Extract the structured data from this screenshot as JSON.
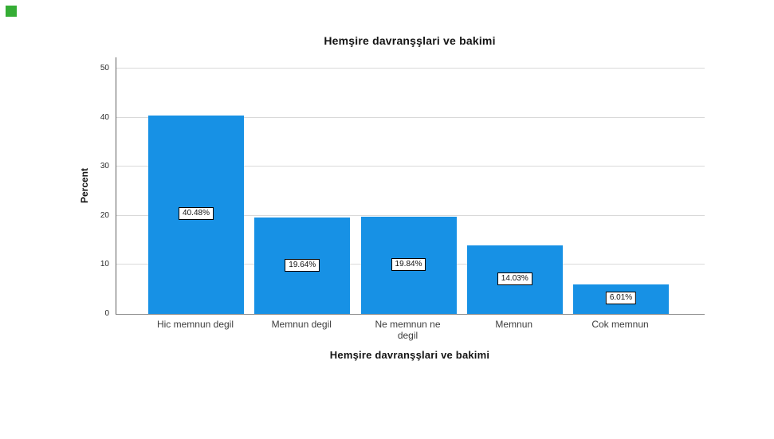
{
  "corner_marker": {
    "color": "#35ad35"
  },
  "chart_data": {
    "type": "bar",
    "title": "Hemşire davranşşlari ve bakimi",
    "xlabel": "Hemşire davranşşlari ve bakimi",
    "ylabel": "Percent",
    "categories": [
      "Hic memnun degil",
      "Memnun degil",
      "Ne memnun ne degil",
      "Memnun",
      "Cok memnun"
    ],
    "values": [
      40.48,
      19.64,
      19.84,
      14.03,
      6.01
    ],
    "bar_labels": [
      "40.48%",
      "19.64%",
      "19.84%",
      "14.03%",
      "6.01%"
    ],
    "yticks": [
      0,
      10,
      20,
      30,
      40,
      50
    ],
    "ylim": [
      0,
      52.3
    ],
    "grid": true,
    "legend": "none",
    "bar_color": "#1791e5",
    "bar_label_style": "white box, black border, centered in bar"
  }
}
